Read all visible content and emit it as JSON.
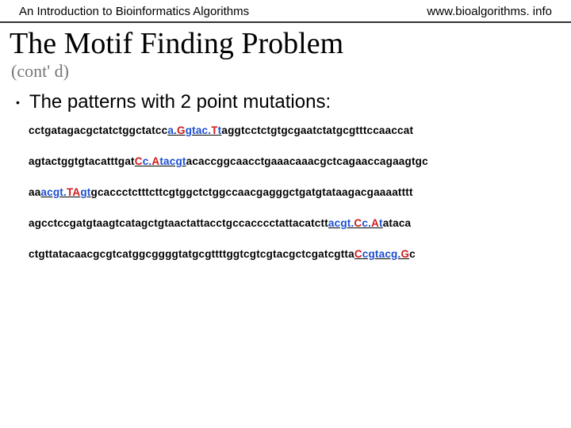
{
  "header": {
    "left": "An Introduction to Bioinformatics Algorithms",
    "right": "www.bioalgorithms. info"
  },
  "title": "The Motif Finding Problem",
  "subtitle": "(cont' d)",
  "bullet": "The patterns with 2 point mutations:",
  "sequences": [
    {
      "pre": "cctgatagacgctatctggctatcc",
      "motif": [
        {
          "t": "a.",
          "c": "blue"
        },
        {
          "t": "G",
          "c": "red"
        },
        {
          "t": "gtac.",
          "c": "blue"
        },
        {
          "t": "T",
          "c": "red"
        },
        {
          "t": "t",
          "c": "blue"
        }
      ],
      "post": "aggtcctctgtgcgaatctatgcgtttccaaccat"
    },
    {
      "pre": "agtactggtgtacatttgat",
      "motif": [
        {
          "t": "C",
          "c": "red"
        },
        {
          "t": "c.",
          "c": "blue"
        },
        {
          "t": "A",
          "c": "red"
        },
        {
          "t": "tacgt",
          "c": "blue"
        }
      ],
      "post": "acaccggcaacctgaaacaaacgctcagaaccagaagtgc"
    },
    {
      "pre": "aa",
      "motif": [
        {
          "t": "acgt.",
          "c": "blue"
        },
        {
          "t": "TA",
          "c": "red"
        },
        {
          "t": "gt",
          "c": "blue"
        }
      ],
      "post": "gcaccctctttcttcgtggctctggccaacgagggctgatgtataagacgaaaatttt"
    },
    {
      "pre": "agcctccgatgtaagtcatagctgtaactattacctgccacccctattacatctt",
      "motif": [
        {
          "t": "acgt.",
          "c": "blue"
        },
        {
          "t": "C",
          "c": "red"
        },
        {
          "t": "c.",
          "c": "blue"
        },
        {
          "t": "A",
          "c": "red"
        },
        {
          "t": "t",
          "c": "blue"
        }
      ],
      "post": "ataca"
    },
    {
      "pre": "ctgttatacaacgcgtcatggcggggtatgcgttttggtcgtcgtacgctcgatcgtta",
      "motif": [
        {
          "t": "C",
          "c": "red"
        },
        {
          "t": "cgtacg.",
          "c": "blue"
        },
        {
          "t": "G",
          "c": "red"
        }
      ],
      "post": "c"
    }
  ],
  "style": {
    "bg": "#ffffff",
    "rule_color": "#333333",
    "title_color": "#000000",
    "subtitle_color": "#777777",
    "seq_fontsize": 13.5,
    "title_fontsize": 38,
    "blue": "#1a4fd1",
    "red": "#d11a1a"
  }
}
